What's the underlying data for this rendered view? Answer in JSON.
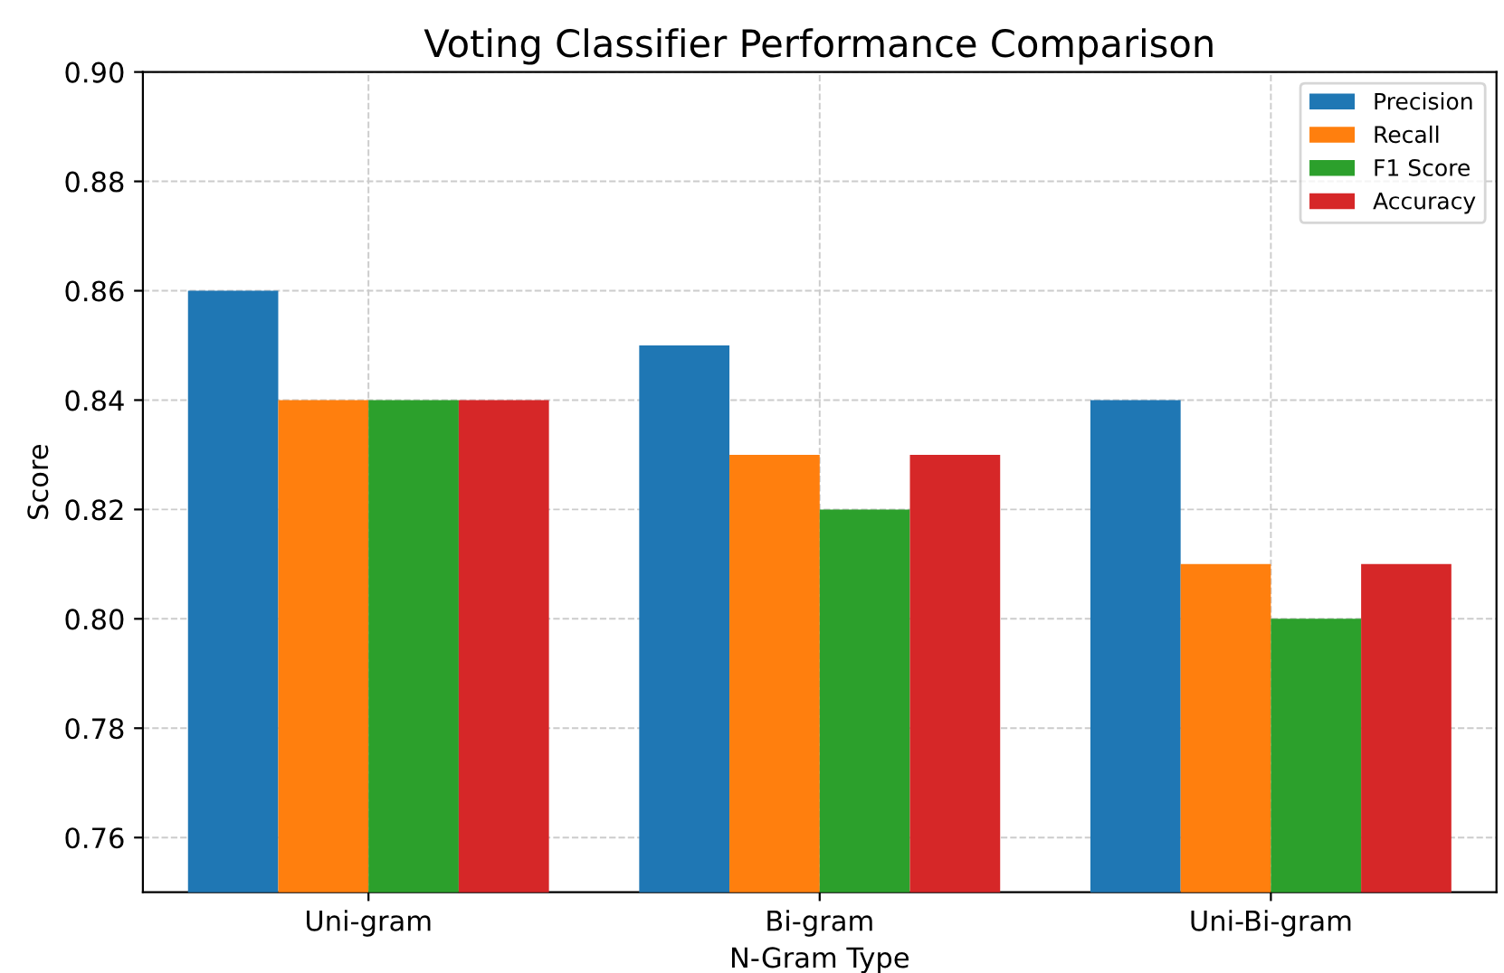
{
  "chart_data": {
    "type": "bar",
    "title": "Voting Classifier Performance Comparison",
    "xlabel": "N-Gram Type",
    "ylabel": "Score",
    "categories": [
      "Uni-gram",
      "Bi-gram",
      "Uni-Bi-gram"
    ],
    "series": [
      {
        "name": "Precision",
        "color": "#1f77b4",
        "values": [
          0.86,
          0.85,
          0.84
        ]
      },
      {
        "name": "Recall",
        "color": "#ff7f0e",
        "values": [
          0.84,
          0.83,
          0.81
        ]
      },
      {
        "name": "F1 Score",
        "color": "#2ca02c",
        "values": [
          0.84,
          0.82,
          0.8
        ]
      },
      {
        "name": "Accuracy",
        "color": "#d62728",
        "values": [
          0.84,
          0.83,
          0.81
        ]
      }
    ],
    "ylim": [
      0.75,
      0.9
    ],
    "yticks": [
      {
        "value": 0.76,
        "label": "0.76"
      },
      {
        "value": 0.78,
        "label": "0.78"
      },
      {
        "value": 0.8,
        "label": "0.80"
      },
      {
        "value": 0.82,
        "label": "0.82"
      },
      {
        "value": 0.84,
        "label": "0.84"
      },
      {
        "value": 0.86,
        "label": "0.86"
      },
      {
        "value": 0.88,
        "label": "0.88"
      },
      {
        "value": 0.9,
        "label": "0.90"
      }
    ],
    "grid": true,
    "legend": "top right"
  }
}
